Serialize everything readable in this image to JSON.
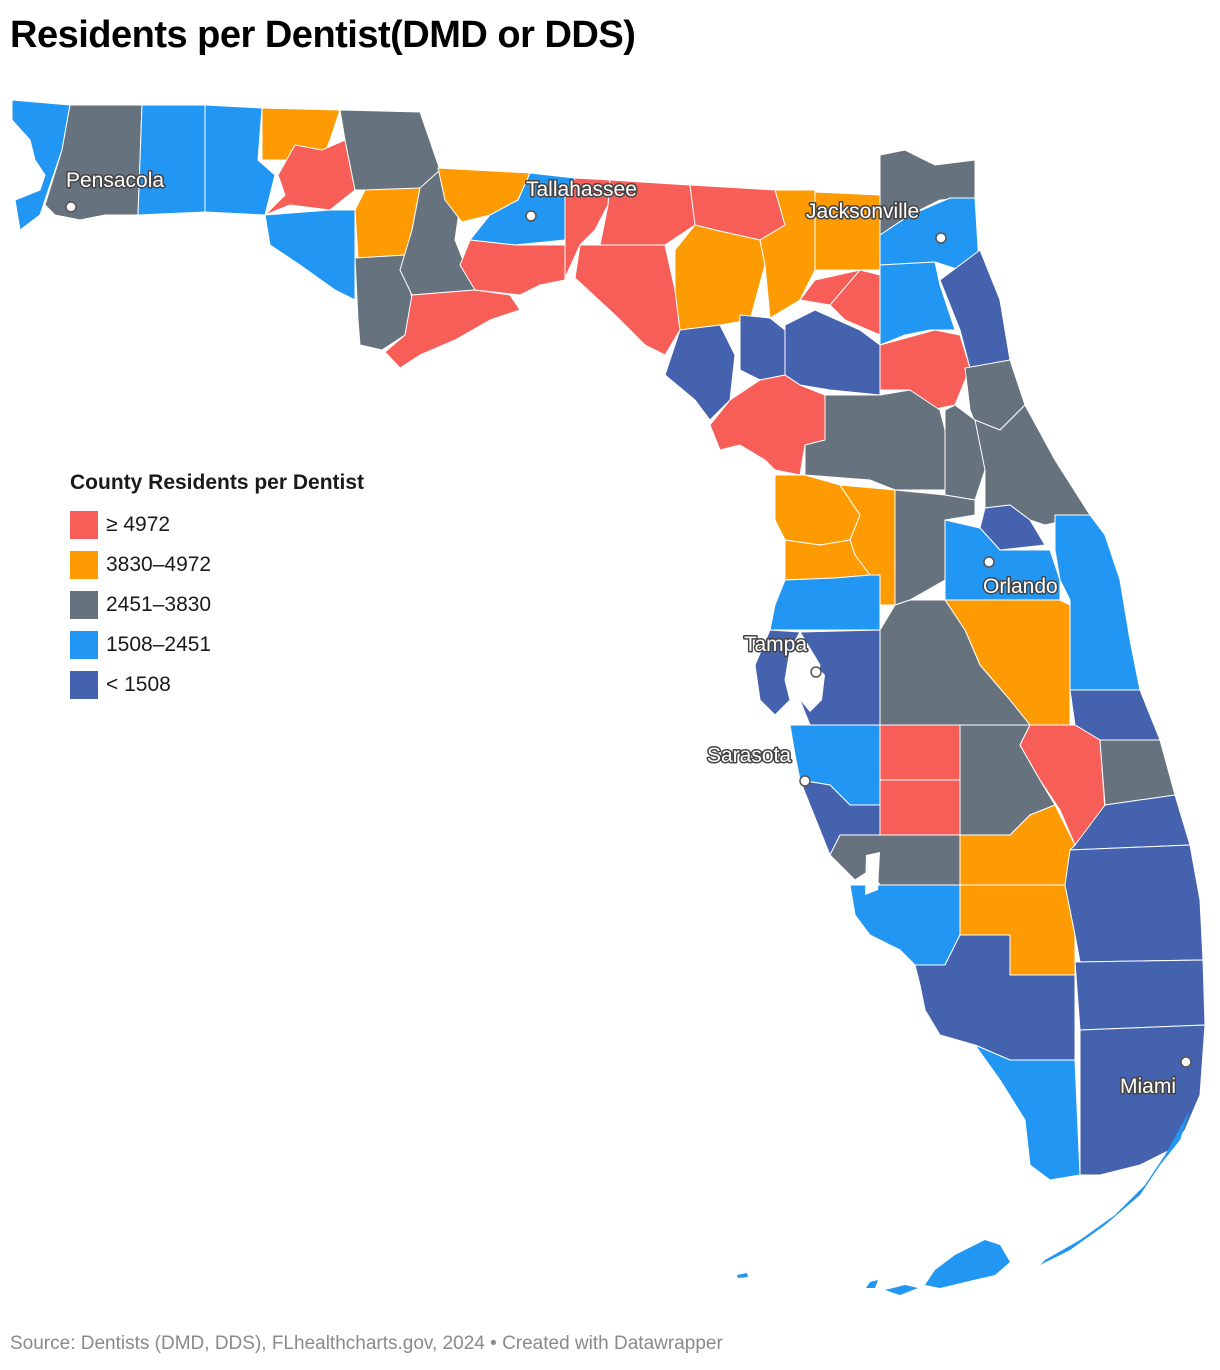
{
  "title": "Residents per Dentist(DMD or DDS)",
  "legend": {
    "title": "County Residents per Dentist",
    "items": [
      {
        "label": "≥ 4972",
        "color": "#F65E57"
      },
      {
        "label": "3830–4972",
        "color": "#FE9A02"
      },
      {
        "label": "2451–3830",
        "color": "#67727F"
      },
      {
        "label": "1508–2451",
        "color": "#2196F3"
      },
      {
        "label": "< 1508",
        "color": "#4462AE"
      }
    ]
  },
  "cities": [
    {
      "name": "Pensacola"
    },
    {
      "name": "Tallahassee"
    },
    {
      "name": "Jacksonville"
    },
    {
      "name": "Orlando"
    },
    {
      "name": "Tampa"
    },
    {
      "name": "Sarasota"
    },
    {
      "name": "Miami"
    }
  ],
  "footer": {
    "source": "Source: Dentists (DMD, DDS), FLhealthcharts.gov, 2024",
    "separator": " • ",
    "credit": "Created with Datawrapper"
  }
}
